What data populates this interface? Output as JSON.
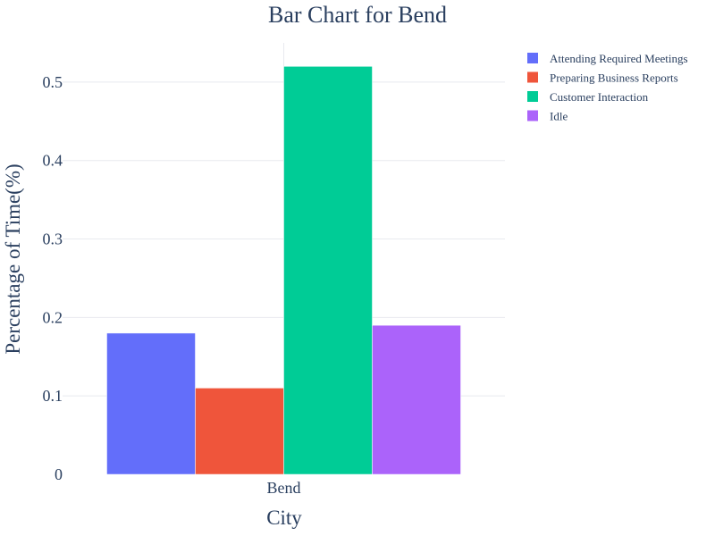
{
  "chart_data": {
    "type": "bar",
    "title": "Bar Chart for Bend",
    "xlabel": "City",
    "ylabel": "Percentage of Time(%)",
    "categories": [
      "Bend"
    ],
    "ylim": [
      0,
      0.55
    ],
    "yticks": [
      0,
      0.1,
      0.2,
      0.3,
      0.4,
      0.5
    ],
    "ytick_labels": [
      "0",
      "0.1",
      "0.2",
      "0.3",
      "0.4",
      "0.5"
    ],
    "grid": true,
    "legend_position": "top-right",
    "series": [
      {
        "name": "Attending Required Meetings",
        "values": [
          0.18
        ],
        "color": "#636efa"
      },
      {
        "name": "Preparing Business Reports",
        "values": [
          0.11
        ],
        "color": "#ef553b"
      },
      {
        "name": "Customer Interaction",
        "values": [
          0.52
        ],
        "color": "#00cc96"
      },
      {
        "name": "Idle",
        "values": [
          0.19
        ],
        "color": "#ab63fa"
      }
    ]
  }
}
